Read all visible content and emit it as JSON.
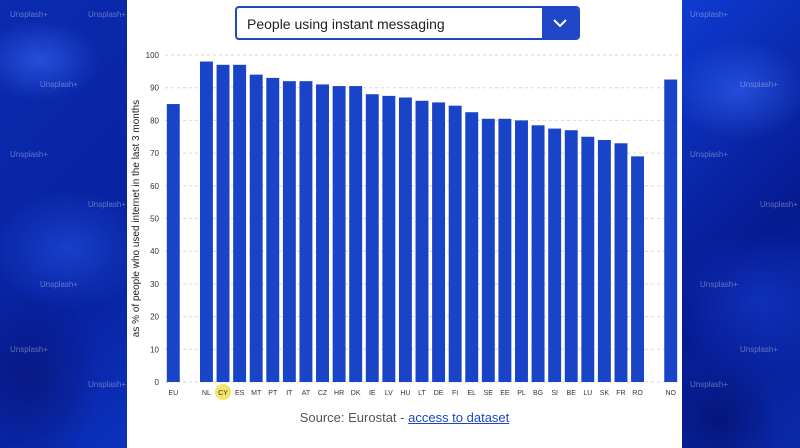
{
  "dropdown": {
    "selected": "People using instant messaging"
  },
  "source": {
    "prefix": "Source: Eurostat - ",
    "link": "access to dataset"
  },
  "watermark": "Unsplash+",
  "colors": {
    "bar": "#1a44c8",
    "highlight": "#f5e36a",
    "accent": "#1e46c6",
    "background": "#0a2aa8"
  },
  "icons": {
    "dropdown": "chevron-down-icon"
  },
  "chart_data": {
    "type": "bar",
    "ylabel": "as % of people who used internet in the last 3 months",
    "ylim": [
      0,
      100
    ],
    "yticks": [
      0,
      10,
      20,
      30,
      40,
      50,
      60,
      70,
      80,
      90,
      100
    ],
    "grid": true,
    "categories": [
      "EU",
      "",
      "NL",
      "CY",
      "ES",
      "MT",
      "PT",
      "IT",
      "AT",
      "CZ",
      "HR",
      "DK",
      "IE",
      "LV",
      "HU",
      "LT",
      "DE",
      "FI",
      "EL",
      "SE",
      "EE",
      "PL",
      "BG",
      "SI",
      "BE",
      "LU",
      "SK",
      "FR",
      "RO",
      "",
      "NO"
    ],
    "values": [
      85,
      null,
      98,
      97,
      97,
      94,
      93,
      92,
      92,
      91,
      90.5,
      90.5,
      88,
      87.5,
      87,
      86,
      85.5,
      84.5,
      82.5,
      80.5,
      80.5,
      80,
      78.5,
      77.5,
      77,
      75,
      74,
      73,
      69,
      null,
      92.5
    ],
    "highlighted": "CY"
  }
}
